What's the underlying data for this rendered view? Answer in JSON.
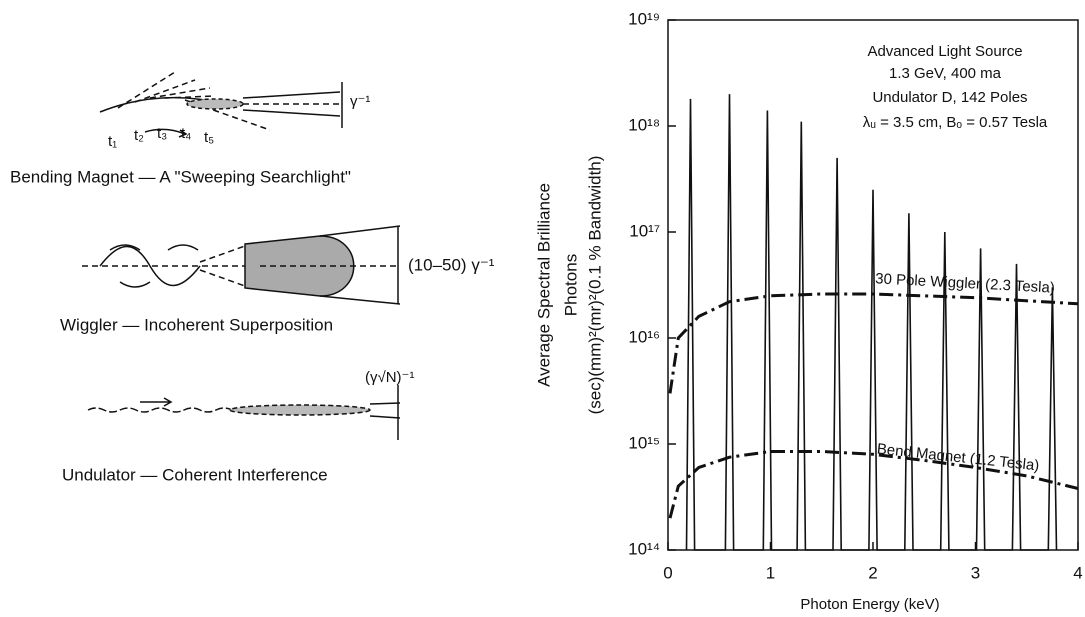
{
  "diagram": {
    "bending_caption": "Bending Magnet — A \"Sweeping Searchlight\"",
    "bending_angle": "γ⁻¹",
    "times": [
      "t₁",
      "t₂",
      "t₃",
      "t₄",
      "t₅"
    ],
    "wiggler_caption": "Wiggler — Incoherent Superposition",
    "wiggler_angle": "(10–50) γ⁻¹",
    "undulator_caption": "Undulator — Coherent Interference",
    "undulator_angle": "(γ√N)⁻¹"
  },
  "chart_data": {
    "type": "line",
    "ylabel": [
      "Average Spectral Brilliance",
      "Photons",
      "(sec)(mm)²(mr)²(0.1 % Bandwidth)"
    ],
    "xlabel": "Photon Energy  (keV)",
    "annotations": [
      "Advanced Light Source",
      "1.3 GeV, 400 ma",
      "Undulator D, 142 Poles",
      "λᵤ = 3.5 cm, Bₒ = 0.57 Tesla"
    ],
    "log_y": true,
    "xlim": [
      0,
      4
    ],
    "ylim": [
      100000000000000.0,
      1e+19
    ],
    "xticks": [
      0,
      1,
      2,
      3,
      4
    ],
    "yticks": [
      {
        "value": 100000000000000.0,
        "label": "10¹⁴"
      },
      {
        "value": 1000000000000000.0,
        "label": "10¹⁵"
      },
      {
        "value": 1e+16,
        "label": "10¹⁶"
      },
      {
        "value": 1e+17,
        "label": "10¹⁷"
      },
      {
        "value": 1e+18,
        "label": "10¹⁸"
      },
      {
        "value": 1e+19,
        "label": "10¹⁹"
      }
    ],
    "series": [
      {
        "name": "Undulator D, 142 Poles",
        "color": "#111",
        "style": "solid",
        "x": [
          0.18,
          0.22,
          0.26,
          0.56,
          0.6,
          0.64,
          0.93,
          0.97,
          1.01,
          1.26,
          1.3,
          1.34,
          1.61,
          1.65,
          1.69,
          1.96,
          2.0,
          2.04,
          2.31,
          2.35,
          2.39,
          2.66,
          2.7,
          2.74,
          3.01,
          3.05,
          3.09,
          3.36,
          3.4,
          3.44,
          3.71,
          3.75,
          3.79
        ],
        "values": [
          100000000000000.0,
          1.8e+18,
          100000000000000.0,
          100000000000000.0,
          2e+18,
          100000000000000.0,
          100000000000000.0,
          1.4e+18,
          100000000000000.0,
          100000000000000.0,
          1.1e+18,
          100000000000000.0,
          100000000000000.0,
          5e+17,
          100000000000000.0,
          100000000000000.0,
          2.5e+17,
          100000000000000.0,
          100000000000000.0,
          1.5e+17,
          100000000000000.0,
          100000000000000.0,
          1e+17,
          100000000000000.0,
          100000000000000.0,
          7e+16,
          100000000000000.0,
          100000000000000.0,
          5e+16,
          100000000000000.0,
          100000000000000.0,
          3e+16,
          100000000000000.0
        ]
      },
      {
        "name": "30 Pole Wiggler (2.3 Tesla)",
        "color": "#111",
        "style": "dashdot",
        "x": [
          0.02,
          0.1,
          0.3,
          0.6,
          1,
          1.5,
          2,
          3,
          4
        ],
        "values": [
          3000000000000000.0,
          1e+16,
          1.6e+16,
          2.2e+16,
          2.5e+16,
          2.6e+16,
          2.6e+16,
          2.4e+16,
          2.1e+16
        ]
      },
      {
        "name": "Bend Magnet (1.2 Tesla)",
        "color": "#111",
        "style": "dashdot",
        "x": [
          0.02,
          0.1,
          0.3,
          0.6,
          1,
          1.5,
          2,
          2.5,
          3,
          3.5,
          4
        ],
        "values": [
          200000000000000.0,
          400000000000000.0,
          600000000000000.0,
          750000000000000.0,
          850000000000000.0,
          850000000000000.0,
          800000000000000.0,
          700000000000000.0,
          600000000000000.0,
          500000000000000.0,
          380000000000000.0
        ]
      }
    ]
  }
}
